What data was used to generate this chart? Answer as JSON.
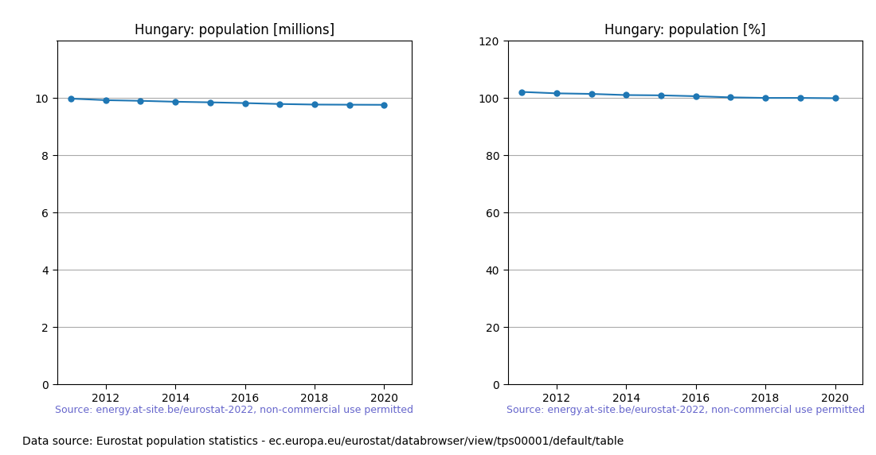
{
  "years": [
    2011,
    2012,
    2013,
    2014,
    2015,
    2016,
    2017,
    2018,
    2019,
    2020
  ],
  "population_millions": [
    9.986,
    9.932,
    9.909,
    9.877,
    9.856,
    9.83,
    9.798,
    9.778,
    9.773,
    9.769
  ],
  "population_pct": [
    102.2,
    101.7,
    101.5,
    101.1,
    101.0,
    100.7,
    100.3,
    100.1,
    100.1,
    100.0
  ],
  "title_millions": "Hungary: population [millions]",
  "title_pct": "Hungary: population [%]",
  "ylim_millions": [
    0,
    12
  ],
  "ylim_pct": [
    0,
    120
  ],
  "yticks_millions": [
    0,
    2,
    4,
    6,
    8,
    10
  ],
  "yticks_pct": [
    0,
    20,
    40,
    60,
    80,
    100,
    120
  ],
  "xticks": [
    2012,
    2014,
    2016,
    2018,
    2020
  ],
  "xlim": [
    2010.6,
    2020.8
  ],
  "line_color": "#1f77b4",
  "marker_color": "#1f77b4",
  "source_text": "Source: energy.at-site.be/eurostat-2022, non-commercial use permitted",
  "source_color": "#6666cc",
  "bottom_text": "Data source: Eurostat population statistics - ec.europa.eu/eurostat/databrowser/view/tps00001/default/table",
  "bottom_color": "#000000",
  "title_fontsize": 12,
  "tick_fontsize": 10,
  "source_fontsize": 9,
  "bottom_fontsize": 10,
  "grid_color": "#aaaaaa",
  "bg_color": "#ffffff"
}
